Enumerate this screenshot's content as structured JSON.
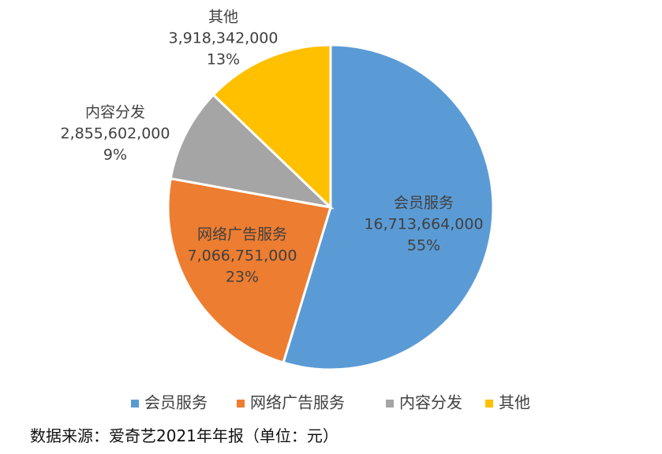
{
  "chart_data": {
    "type": "pie",
    "start_angle_deg": 90,
    "direction": "clockwise",
    "slices": [
      {
        "name": "会员服务",
        "value": 16713664000,
        "value_label": "16,713,664,000",
        "percent_label": "55%",
        "color": "#5B9BD5"
      },
      {
        "name": "网络广告服务",
        "value": 7066751000,
        "value_label": "7,066,751,000",
        "percent_label": "23%",
        "color": "#ED7D31"
      },
      {
        "name": "内容分发",
        "value": 2855602000,
        "value_label": "2,855,602,000",
        "percent_label": "9%",
        "color": "#A5A5A5"
      },
      {
        "name": "其他",
        "value": 3918342000,
        "value_label": "3,918,342,000",
        "percent_label": "13%",
        "color": "#FFC000"
      }
    ],
    "legend": {
      "placement": "bottom",
      "entries": [
        "会员服务",
        "网络广告服务",
        "内容分发",
        "其他"
      ]
    }
  },
  "source_note": "数据来源：爱奇艺2021年年报（单位：元）"
}
